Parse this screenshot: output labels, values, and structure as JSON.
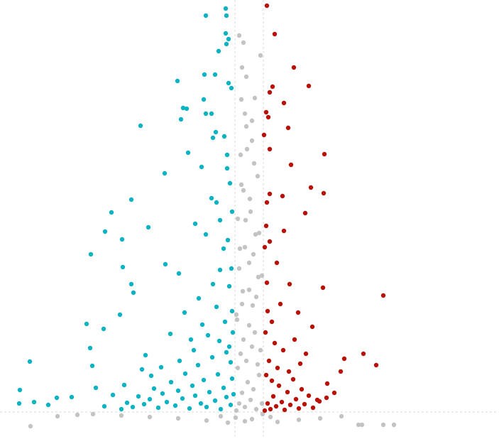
{
  "chart_data": {
    "type": "scatter",
    "xlim": [
      -17.55,
      17.6
    ],
    "ylim": [
      -2,
      59.8
    ],
    "vlines": [
      -1,
      1
    ],
    "hline": 1.8,
    "series": [
      {
        "color": "#0db3c2",
        "x": [
          -1.65,
          -1.6,
          -3.05,
          -1.65,
          -1.45,
          -1.6,
          -2.15,
          -3.15,
          -2.4,
          -5.05,
          -1.45,
          -1.25,
          -4.65,
          -4.4,
          -3.2,
          -2.65,
          -3.05,
          -4.8,
          -7.65,
          -2.35,
          -2.55,
          -1.75,
          -1.55,
          -4.3,
          -5.95,
          -3.35,
          -1.55,
          -2.65,
          -2.3,
          -8.3,
          -9.7,
          -7.1,
          -10.15,
          -8.95,
          -11.15,
          -8.9,
          -8.3,
          -8.15,
          -5.9,
          -4.95,
          -11.45,
          -9.1,
          -10.25,
          -15.45,
          -16.15,
          -16.2,
          -15.15,
          -14.15,
          -13.55,
          -12.5,
          -10.8,
          -11.05,
          -11.2,
          -7.3,
          -7.55,
          -5.55,
          -4.55,
          -3.55,
          -2.55,
          -2.05,
          -1.8,
          -3.05,
          -3.8,
          -2.05,
          -9,
          -8.6,
          -8.2,
          -7.8,
          -7.4,
          -7,
          -6.7,
          -6.4,
          -6.1,
          -5.8,
          -5.5,
          -5.2,
          -5,
          -4.7,
          -4.5,
          -4.2,
          -4,
          -3.8,
          -3.6,
          -3.4,
          -3.2,
          -3,
          -2.8,
          -2.6,
          -2.4,
          -2.2,
          -2,
          -1.8,
          -1.6,
          -1.4,
          -1.3,
          -1.2,
          -1.1,
          -1.15,
          -1.3,
          -1.6,
          -2.1,
          -2.9,
          -3.9,
          -4.9,
          -6.2,
          -6.9,
          -8.8,
          -9.6,
          -10.2,
          -1.2,
          -1.4,
          -1.7,
          -2.3,
          -3.3,
          -4.1,
          -1.25,
          -1.5,
          -1.2,
          -1.35
        ],
        "values": [
          58.6,
          57.6,
          57.6,
          55.1,
          54.3,
          53.6,
          52.6,
          49.3,
          49.3,
          48.4,
          48.1,
          47.4,
          44.6,
          44.5,
          45.8,
          43.8,
          43.8,
          43,
          42.1,
          41.2,
          40.4,
          40.6,
          38,
          38.3,
          35.4,
          36.3,
          36.1,
          31.9,
          31.3,
          31.7,
          29.9,
          27.8,
          27.2,
          26.1,
          24,
          22.2,
          19.8,
          18.6,
          22.6,
          21.3,
          14.2,
          15.5,
          13.5,
          8.9,
          4.9,
          3,
          3.2,
          2.8,
          3.8,
          3.9,
          5.2,
          8.3,
          10.8,
          9.8,
          7.8,
          12.8,
          15.8,
          17.8,
          19.8,
          21.8,
          24.8,
          26.8,
          28.3,
          28.8,
          2.2,
          3.1,
          2.5,
          4,
          2.9,
          3.6,
          5.1,
          2.4,
          4.4,
          3.2,
          6,
          2.7,
          4.8,
          3.7,
          7.2,
          2.3,
          5.5,
          4.1,
          8.4,
          3,
          6.3,
          2.5,
          4.6,
          9.5,
          3.4,
          7.1,
          2.2,
          5.2,
          3.9,
          11,
          2.8,
          6.5,
          4.3,
          13,
          8.8,
          10.2,
          11.8,
          12.6,
          10.5,
          9,
          8.1,
          6.9,
          5.6,
          4.2,
          2.6,
          16,
          19.5,
          14.5,
          16.6,
          14.1,
          12,
          22,
          26,
          30,
          34
        ]
      },
      {
        "color": "#b81208",
        "x": [
          1.25,
          1.8,
          3.15,
          4.2,
          1.65,
          1.45,
          2.45,
          1.2,
          1.35,
          2.75,
          1.05,
          1.45,
          5.3,
          2.95,
          4.35,
          5.25,
          1.45,
          2.35,
          1.25,
          3.95,
          2.45,
          1.45,
          1.95,
          2.85,
          5.2,
          9.45,
          3.45,
          4.45,
          6.7,
          8.05,
          8.95,
          6.45,
          5.45,
          4.95,
          1.1,
          1.3,
          1.5,
          1.7,
          1.9,
          2.1,
          2.3,
          2.5,
          2.7,
          2.9,
          3.1,
          3.3,
          3.5,
          3.7,
          3.9,
          4.2,
          4.5,
          4.8,
          1.2,
          1.4,
          1.6,
          1.8,
          2,
          2.4,
          2.8,
          3.2,
          3.6,
          4,
          1.15,
          1.3,
          1.25,
          1.6,
          2.2,
          5.5,
          6,
          1.1,
          1.2
        ],
        "values": [
          59,
          55,
          50.3,
          47.7,
          47.6,
          46.8,
          45.3,
          44,
          43.3,
          41.8,
          40.8,
          38.8,
          38.1,
          36.6,
          33.4,
          32.6,
          32.5,
          32.2,
          31.3,
          29.8,
          27.3,
          25.8,
          22.8,
          19.8,
          19.3,
          18.2,
          15.8,
          13.8,
          9.3,
          10,
          8.4,
          7.5,
          3.8,
          3.3,
          2,
          3,
          2.2,
          4,
          2.6,
          5.5,
          3.2,
          2.1,
          4.6,
          2.8,
          6.4,
          3.6,
          2.3,
          5,
          2.9,
          4.1,
          2.4,
          3.5,
          7,
          9,
          6.2,
          11.5,
          8,
          10.5,
          7.5,
          12,
          8.6,
          10,
          13,
          16,
          20,
          14.5,
          17,
          5.8,
          4.5,
          25,
          28
        ]
      },
      {
        "color": "#c3c3c3",
        "x": [
          -0.7,
          -0.4,
          -0.5,
          -0.2,
          -0.55,
          -0.3,
          0.2,
          -0.15,
          0.35,
          -0.55,
          0.05,
          -0.25,
          0.45,
          -0.65,
          0,
          0.65,
          -0.45,
          0.25,
          -0.85,
          -0.9,
          -0.7,
          -0.5,
          -0.3,
          -0.1,
          0.1,
          0.3,
          0.5,
          0.7,
          0.9,
          -0.8,
          -0.6,
          -0.4,
          -0.2,
          0,
          0.2,
          0.4,
          0.6,
          0.8,
          -0.9,
          -0.5,
          0,
          0.5,
          0.9,
          -0.7,
          -0.3,
          0.3,
          0.7,
          -0.8,
          0.1,
          -0.4,
          0.6,
          -0.6,
          0.2,
          -0.2,
          0.4,
          0.8,
          -0.3,
          0.2,
          -1.5,
          -3,
          -5,
          -7,
          -9,
          -11,
          -12.1,
          -13.5,
          -15.4,
          2,
          3.5,
          5,
          6.5,
          7.7,
          7.95,
          9.45,
          10.2,
          -2,
          1.5,
          -0.95,
          0.95
        ],
        "values": [
          54.8,
          53.8,
          50.3,
          49,
          45.8,
          43.8,
          42.8,
          38.8,
          36.8,
          33.8,
          31.8,
          28.8,
          26.8,
          24.8,
          22.8,
          20.8,
          18.8,
          16.8,
          14.8,
          2,
          3,
          4.5,
          2.5,
          6,
          3.5,
          5,
          2.2,
          7,
          3,
          8,
          10,
          12,
          9,
          14,
          11,
          13,
          8.5,
          10.5,
          15.5,
          17,
          19,
          18,
          21,
          22,
          25,
          24,
          27,
          29,
          30,
          33,
          35,
          38,
          40,
          42,
          46,
          52,
          0.5,
          0.8,
          0.3,
          0.6,
          0.9,
          1.1,
          1.3,
          1.5,
          1.4,
          1.2,
          -0.2,
          0.4,
          0.7,
          0.9,
          1.2,
          0,
          0,
          0,
          0,
          1.2,
          1.1,
          1,
          1.5
        ]
      }
    ]
  }
}
